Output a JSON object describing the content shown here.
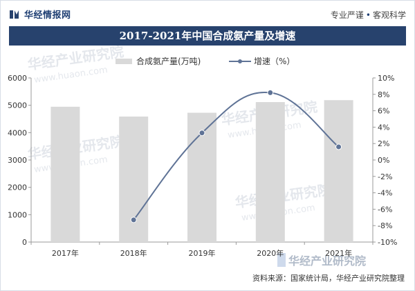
{
  "header": {
    "brand": "华经情报网",
    "slogan_left": "专业严谨",
    "slogan_sep": "•",
    "slogan_right": "客观科学"
  },
  "footer": {
    "source": "资料来源：国家统计局，华经产业研究院整理"
  },
  "watermark": {
    "text": "华经产业研究院",
    "url": "www.huaon.com"
  },
  "colors": {
    "brand_navy": "#27426d",
    "bar": "#d9d9d9",
    "line": "#5f7396",
    "text": "#333333"
  },
  "chart_data": {
    "type": "bar",
    "title": "2017-2021年中国合成氨产量及增速",
    "categories": [
      "2017年",
      "2018年",
      "2019年",
      "2020年",
      "2021年"
    ],
    "series": [
      {
        "name": "合成氨产量(万吨)",
        "type": "bar",
        "axis": "left",
        "values": [
          4946,
          4587,
          4727,
          5117,
          5188
        ]
      },
      {
        "name": "增速（%）",
        "type": "line",
        "axis": "right",
        "values": [
          null,
          -7.3,
          3.3,
          8.2,
          1.6
        ]
      }
    ],
    "y_left": {
      "min": 0,
      "max": 6000,
      "ticks": [
        "0",
        "1000",
        "2000",
        "3000",
        "4000",
        "5000",
        "6000"
      ]
    },
    "y_right": {
      "min": -10,
      "max": 10,
      "ticks": [
        "-10%",
        "-8%",
        "-6%",
        "-4%",
        "-2%",
        "0%",
        "2%",
        "4%",
        "6%",
        "8%",
        "10%"
      ]
    },
    "grid": false,
    "legend_position": "top-center"
  }
}
